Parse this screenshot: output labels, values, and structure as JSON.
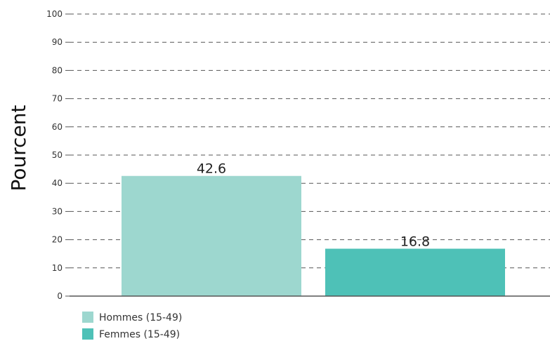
{
  "chart_data": {
    "type": "bar",
    "title": "",
    "xlabel": "",
    "ylabel": "Pourcent",
    "ylim": [
      0,
      100
    ],
    "yticks": [
      0,
      10,
      20,
      30,
      40,
      50,
      60,
      70,
      80,
      90,
      100
    ],
    "grid": true,
    "legend_position": "bottom-left",
    "series": [
      {
        "name": "Hommes (15-49)",
        "value": 42.6,
        "label": "42.6",
        "color": "#9dd7cf"
      },
      {
        "name": "Femmes (15-49)",
        "value": 16.8,
        "label": "16.8",
        "color": "#4ec1b7"
      }
    ]
  }
}
